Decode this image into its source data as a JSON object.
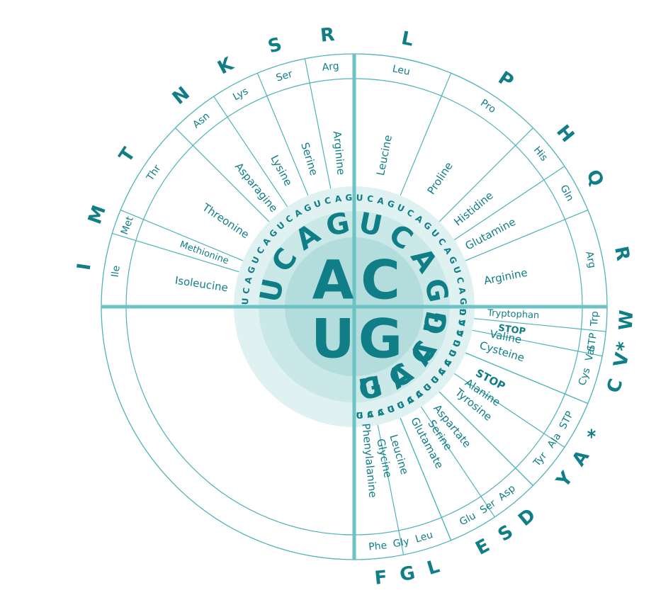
{
  "colors": {
    "text": "#0f7e86",
    "line": "#4fb3b7",
    "axis": "#6cc3c6",
    "light_fill": "#dff1f1",
    "inner_fill": "#b3dddd"
  },
  "center_letters": [
    "A",
    "C",
    "U",
    "G"
  ],
  "codon_table": [
    {
      "first": "A",
      "second": [
        "U",
        "C",
        "A",
        "G"
      ],
      "third_order": [
        "U",
        "C",
        "A",
        "G"
      ],
      "blocks": [
        {
          "segments": [
            {
              "aa": "Isoleucine",
              "abbr": "Ile",
              "one": "I",
              "span": 3
            },
            {
              "aa": "Methionine",
              "abbr": "Met",
              "one": "M",
              "span": 1
            }
          ]
        },
        {
          "segments": [
            {
              "aa": "Threonine",
              "abbr": "Thr",
              "one": "T",
              "span": 4
            }
          ]
        },
        {
          "segments": [
            {
              "aa": "Asparagine",
              "abbr": "Asn",
              "one": "N",
              "span": 2
            },
            {
              "aa": "Lysine",
              "abbr": "Lys",
              "one": "K",
              "span": 2
            }
          ]
        },
        {
          "segments": [
            {
              "aa": "Serine",
              "abbr": "Ser",
              "one": "S",
              "span": 2
            },
            {
              "aa": "Arginine",
              "abbr": "Arg",
              "one": "R",
              "span": 2
            }
          ]
        }
      ]
    },
    {
      "first": "C",
      "second": [
        "U",
        "C",
        "A",
        "G"
      ],
      "third_order": [
        "U",
        "C",
        "A",
        "G"
      ],
      "blocks": [
        {
          "segments": [
            {
              "aa": "Leucine",
              "abbr": "Leu",
              "one": "L",
              "span": 4
            }
          ]
        },
        {
          "segments": [
            {
              "aa": "Proline",
              "abbr": "Pro",
              "one": "P",
              "span": 4
            }
          ]
        },
        {
          "segments": [
            {
              "aa": "Histidine",
              "abbr": "His",
              "one": "H",
              "span": 2
            },
            {
              "aa": "Glutamine",
              "abbr": "Gln",
              "one": "Q",
              "span": 2
            }
          ]
        },
        {
          "segments": [
            {
              "aa": "Arginine",
              "abbr": "Arg",
              "one": "R",
              "span": 4
            }
          ]
        }
      ]
    },
    {
      "first": "U",
      "second": [
        "U",
        "C",
        "A",
        "G"
      ],
      "third_order": [
        "U",
        "C",
        "A",
        "G"
      ],
      "blocks": [
        {
          "segments": [
            {
              "aa": "Phenylalanine",
              "abbr": "Phe",
              "one": "F",
              "span": 2
            },
            {
              "aa": "Leucine",
              "abbr": "Leu",
              "one": "L",
              "span": 2
            }
          ]
        },
        {
          "segments": [
            {
              "aa": "Serine",
              "abbr": "Ser",
              "one": "S",
              "span": 4
            }
          ]
        },
        {
          "segments": [
            {
              "aa": "Tyrosine",
              "abbr": "Tyr",
              "one": "Y",
              "span": 2
            },
            {
              "aa": "STOP",
              "abbr": "STP",
              "one": "*",
              "span": 2,
              "bold": true
            }
          ]
        },
        {
          "segments": [
            {
              "aa": "Cysteine",
              "abbr": "Cys",
              "one": "C",
              "span": 2
            },
            {
              "aa": "STOP",
              "abbr": "STP",
              "one": "*",
              "span": 1,
              "bold": true
            },
            {
              "aa": "Tryptophan",
              "abbr": "Trp",
              "one": "W",
              "span": 1
            }
          ]
        }
      ]
    },
    {
      "first": "G",
      "second": [
        "U",
        "C",
        "A",
        "G"
      ],
      "third_order": [
        "U",
        "C",
        "A",
        "G"
      ],
      "blocks": [
        {
          "segments": [
            {
              "aa": "Valine",
              "abbr": "Val",
              "one": "V",
              "span": 4
            }
          ]
        },
        {
          "segments": [
            {
              "aa": "Alanine",
              "abbr": "Ala",
              "one": "A",
              "span": 4
            }
          ]
        },
        {
          "segments": [
            {
              "aa": "Aspartate",
              "abbr": "Asp",
              "one": "D",
              "span": 2
            },
            {
              "aa": "Glutamate",
              "abbr": "Glu",
              "one": "E",
              "span": 2
            }
          ]
        },
        {
          "segments": [
            {
              "aa": "Glycine",
              "abbr": "Gly",
              "one": "G",
              "span": 4
            }
          ]
        }
      ]
    }
  ]
}
